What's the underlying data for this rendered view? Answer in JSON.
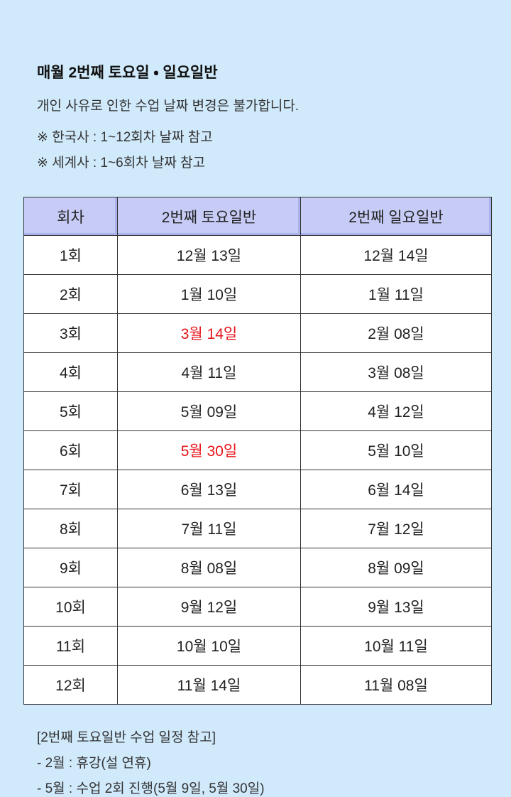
{
  "header": {
    "title": "매월 2번째 토요일 ・ 일요일반",
    "description": "개인 사유로 인한 수업 날짜 변경은 불가합니다.",
    "notes": [
      "※ 한국사 : 1~12회차 날짜 참고",
      "※ 세계사 : 1~6회차 날짜 참고"
    ]
  },
  "table": {
    "columns": [
      "회차",
      "2번째 토요일반",
      "2번째 일요일반"
    ],
    "rows": [
      [
        "1회",
        "12월 13일",
        "12월 14일"
      ],
      [
        "2회",
        "1월 10일",
        "1월 11일"
      ],
      [
        "3회",
        "3월 14일",
        "2월 08일"
      ],
      [
        "4회",
        "4월 11일",
        "3월 08일"
      ],
      [
        "5회",
        "5월 09일",
        "4월 12일"
      ],
      [
        "6회",
        "5월 30일",
        "5월 10일"
      ],
      [
        "7회",
        "6월 13일",
        "6월 14일"
      ],
      [
        "8회",
        "7월 11일",
        "7월 12일"
      ],
      [
        "9회",
        "8월 08일",
        "8월 09일"
      ],
      [
        "10회",
        "9월 12일",
        "9월 13일"
      ],
      [
        "11회",
        "10월 10일",
        "10월 11일"
      ],
      [
        "12회",
        "11월 14일",
        "11월 08일"
      ]
    ],
    "highlight_color": "#e8141a",
    "highlighted_cells": [
      {
        "row": 2,
        "col": 1
      },
      {
        "row": 5,
        "col": 1
      }
    ]
  },
  "footer": {
    "lines": [
      "[2번째 토요일반 수업 일정 참고]",
      "- 2월 : 휴강(설 연휴)",
      "- 5월 : 수업 2회 진행(5월 9일, 5월 30일)"
    ]
  }
}
